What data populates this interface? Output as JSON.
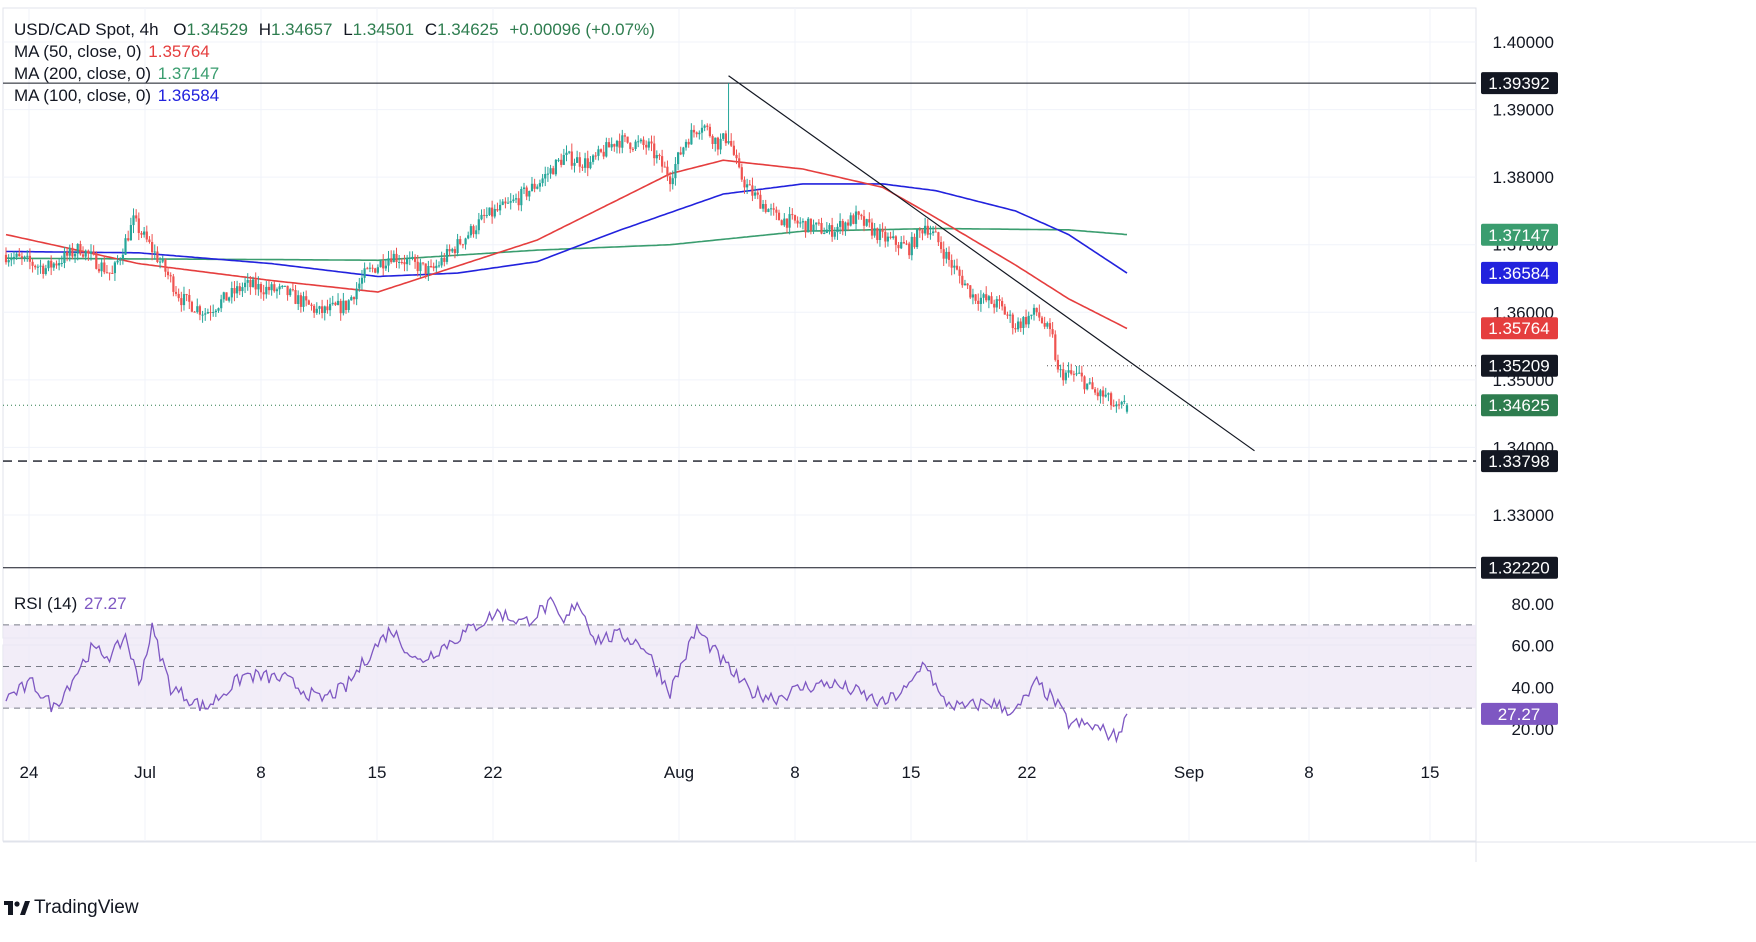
{
  "header": {
    "symbol": "USD/CAD Spot, 4h",
    "open_label": "O",
    "open": "1.34529",
    "high_label": "H",
    "high": "1.34657",
    "low_label": "L",
    "low": "1.34501",
    "close_label": "C",
    "close": "1.34625",
    "change": "+0.00096 (+0.07%)"
  },
  "indicators": [
    {
      "label": "MA (50, close, 0)",
      "value": "1.35764",
      "color": "#e53e3e"
    },
    {
      "label": "MA (200, close, 0)",
      "value": "1.37147",
      "color": "#3a9d6f"
    },
    {
      "label": "MA (100, close, 0)",
      "value": "1.36584",
      "color": "#2222dd"
    }
  ],
  "rsi": {
    "label": "RSI (14)",
    "value": "27.27",
    "color": "#7e57c2"
  },
  "footer": {
    "brand": "TradingView"
  },
  "colors": {
    "up": "#26a69a",
    "down": "#ef5350",
    "ma50": "#e53e3e",
    "ma200": "#3a9d6f",
    "ma100": "#2222dd",
    "rsi": "#7e57c2",
    "price_tag": "#2e7d4f"
  },
  "chart_data": [
    {
      "type": "candlestick",
      "title": "USD/CAD Spot, 4h",
      "ylim": [
        1.3175,
        1.405
      ],
      "y_ticks": [
        "1.40000",
        "1.39000",
        "1.38000",
        "1.37000",
        "1.36000",
        "1.35000",
        "1.34000",
        "1.33000"
      ],
      "x_ticks": [
        "24",
        "Jul",
        "8",
        "15",
        "22",
        "Aug",
        "8",
        "15",
        "22",
        "Sep",
        "8",
        "15"
      ],
      "price_tags": [
        {
          "value": 1.39392,
          "label": "1.39392",
          "kind": "line"
        },
        {
          "value": 1.37147,
          "label": "1.37147",
          "kind": "ma200"
        },
        {
          "value": 1.36584,
          "label": "1.36584",
          "kind": "ma100"
        },
        {
          "value": 1.35764,
          "label": "1.35764",
          "kind": "ma50"
        },
        {
          "value": 1.35209,
          "label": "1.35209",
          "kind": "line"
        },
        {
          "value": 1.34625,
          "label": "1.34625",
          "kind": "last"
        },
        {
          "value": 1.33798,
          "label": "1.33798",
          "kind": "line"
        },
        {
          "value": 1.3222,
          "label": "1.32220",
          "kind": "line"
        }
      ],
      "close_anchors": [
        [
          0,
          1.3685
        ],
        [
          15,
          1.3665
        ],
        [
          28,
          1.3695
        ],
        [
          40,
          1.3655
        ],
        [
          48,
          1.3735
        ],
        [
          58,
          1.3675
        ],
        [
          66,
          1.362
        ],
        [
          75,
          1.36
        ],
        [
          90,
          1.364
        ],
        [
          105,
          1.363
        ],
        [
          118,
          1.36
        ],
        [
          128,
          1.361
        ],
        [
          135,
          1.3655
        ],
        [
          145,
          1.3685
        ],
        [
          160,
          1.366
        ],
        [
          170,
          1.37
        ],
        [
          180,
          1.374
        ],
        [
          190,
          1.376
        ],
        [
          200,
          1.379
        ],
        [
          210,
          1.383
        ],
        [
          220,
          1.382
        ],
        [
          230,
          1.3855
        ],
        [
          242,
          1.3845
        ],
        [
          250,
          1.38
        ],
        [
          256,
          1.3855
        ],
        [
          262,
          1.388
        ],
        [
          268,
          1.385
        ],
        [
          272,
          1.386
        ],
        [
          276,
          1.3805
        ],
        [
          280,
          1.378
        ],
        [
          290,
          1.374
        ],
        [
          300,
          1.373
        ],
        [
          310,
          1.372
        ],
        [
          320,
          1.374
        ],
        [
          330,
          1.371
        ],
        [
          340,
          1.3695
        ],
        [
          346,
          1.373
        ],
        [
          350,
          1.371
        ],
        [
          356,
          1.367
        ],
        [
          364,
          1.3625
        ],
        [
          374,
          1.361
        ],
        [
          380,
          1.358
        ],
        [
          388,
          1.36
        ],
        [
          394,
          1.356
        ],
        [
          396,
          1.351
        ],
        [
          404,
          1.3505
        ],
        [
          410,
          1.348
        ],
        [
          414,
          1.3475
        ],
        [
          418,
          1.3455
        ],
        [
          422,
          1.3463
        ]
      ],
      "ma50_points": [
        [
          0,
          1.3715
        ],
        [
          50,
          1.3672
        ],
        [
          100,
          1.3647
        ],
        [
          140,
          1.363
        ],
        [
          200,
          1.3707
        ],
        [
          250,
          1.3805
        ],
        [
          270,
          1.3825
        ],
        [
          300,
          1.3812
        ],
        [
          330,
          1.3785
        ],
        [
          350,
          1.374
        ],
        [
          380,
          1.367
        ],
        [
          400,
          1.362
        ],
        [
          422,
          1.3576
        ]
      ],
      "ma100_points": [
        [
          0,
          1.369
        ],
        [
          50,
          1.3688
        ],
        [
          100,
          1.3672
        ],
        [
          140,
          1.3653
        ],
        [
          170,
          1.3658
        ],
        [
          200,
          1.3675
        ],
        [
          230,
          1.372
        ],
        [
          270,
          1.3775
        ],
        [
          300,
          1.379
        ],
        [
          330,
          1.379
        ],
        [
          350,
          1.378
        ],
        [
          380,
          1.375
        ],
        [
          400,
          1.3715
        ],
        [
          422,
          1.3658
        ]
      ],
      "ma200_points": [
        [
          0,
          1.368
        ],
        [
          100,
          1.3678
        ],
        [
          140,
          1.3677
        ],
        [
          200,
          1.3692
        ],
        [
          250,
          1.37
        ],
        [
          300,
          1.372
        ],
        [
          350,
          1.3724
        ],
        [
          400,
          1.3722
        ],
        [
          422,
          1.3715
        ]
      ],
      "trendline": [
        [
          272,
          1.395
        ],
        [
          470,
          1.3395
        ]
      ],
      "high_bar": {
        "index": 272,
        "high": 1.3939
      }
    },
    {
      "type": "line",
      "title": "RSI (14)",
      "ylim": [
        10,
        85
      ],
      "y_ticks": [
        "80.00",
        "60.00",
        "40.00",
        "20.00"
      ],
      "levels": [
        70,
        50,
        30
      ],
      "series": [
        {
          "name": "RSI (14)",
          "last": 27.27,
          "anchors": [
            [
              0,
              35
            ],
            [
              10,
              42
            ],
            [
              18,
              30
            ],
            [
              25,
              44
            ],
            [
              32,
              58
            ],
            [
              40,
              55
            ],
            [
              45,
              65
            ],
            [
              50,
              42
            ],
            [
              55,
              68
            ],
            [
              62,
              40
            ],
            [
              75,
              30
            ],
            [
              90,
              46
            ],
            [
              105,
              44
            ],
            [
              118,
              34
            ],
            [
              128,
              40
            ],
            [
              138,
              58
            ],
            [
              145,
              68
            ],
            [
              155,
              52
            ],
            [
              165,
              60
            ],
            [
              175,
              68
            ],
            [
              185,
              76
            ],
            [
              195,
              71
            ],
            [
              205,
              80
            ],
            [
              210,
              70
            ],
            [
              215,
              82
            ],
            [
              222,
              63
            ],
            [
              232,
              65
            ],
            [
              240,
              60
            ],
            [
              250,
              38
            ],
            [
              260,
              68
            ],
            [
              270,
              52
            ],
            [
              280,
              38
            ],
            [
              290,
              35
            ],
            [
              300,
              40
            ],
            [
              310,
              42
            ],
            [
              320,
              38
            ],
            [
              330,
              32
            ],
            [
              340,
              40
            ],
            [
              346,
              53
            ],
            [
              352,
              34
            ],
            [
              360,
              30
            ],
            [
              370,
              33
            ],
            [
              380,
              28
            ],
            [
              388,
              42
            ],
            [
              395,
              33
            ],
            [
              400,
              23
            ],
            [
              410,
              21
            ],
            [
              418,
              16
            ],
            [
              422,
              27.27
            ]
          ]
        }
      ]
    }
  ]
}
